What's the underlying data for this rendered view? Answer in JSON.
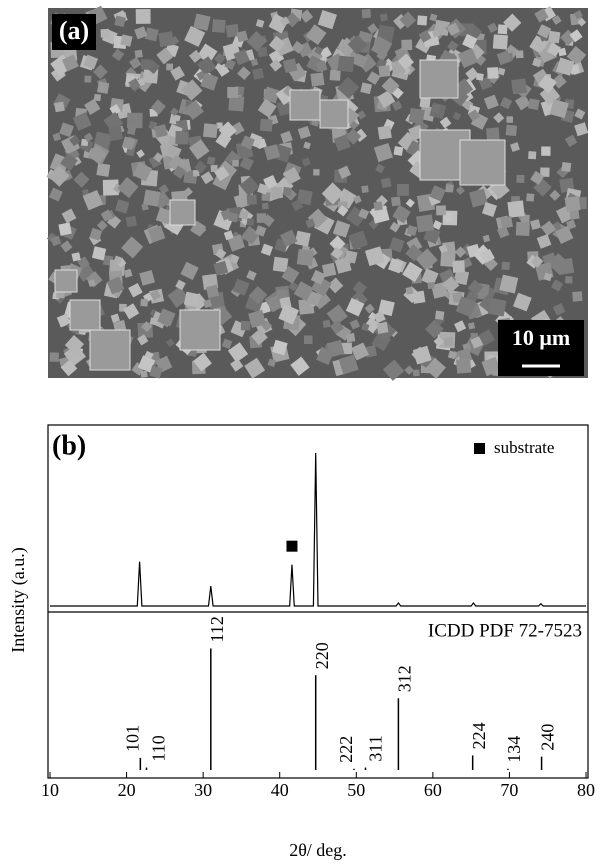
{
  "panel_a": {
    "label": "(a)",
    "scale_bar": "10 μm"
  },
  "chart_data": [
    {
      "type": "line",
      "label": "(b)",
      "legend": "substrate",
      "color": "#000000",
      "x": [
        10,
        21.4,
        21.7,
        22.0,
        30.7,
        31.0,
        31.3,
        41.3,
        41.6,
        41.9,
        44.4,
        44.7,
        45.0,
        55.2,
        55.5,
        55.8,
        65.0,
        65.3,
        65.6,
        73.8,
        74.1,
        74.4,
        80
      ],
      "values": [
        0,
        0,
        29,
        0,
        0,
        13,
        0,
        0,
        27,
        0,
        0,
        100,
        0,
        0,
        2,
        0,
        0,
        2,
        0,
        0,
        1.5,
        0,
        0
      ],
      "xlim": [
        10,
        80
      ],
      "ylim": [
        0,
        115
      ]
    },
    {
      "type": "stick",
      "title": "ICDD PDF 72-7523",
      "color": "#000000",
      "x": [
        21.8,
        22.6,
        31.0,
        44.7,
        49.7,
        51.2,
        55.5,
        65.2,
        69.8,
        74.2
      ],
      "values": [
        10,
        2,
        100,
        78,
        1,
        2,
        59,
        12,
        1,
        11
      ],
      "categories": [
        "101",
        "110",
        "112",
        "220",
        "222",
        "311",
        "312",
        "224",
        "134",
        "240"
      ],
      "xlim": [
        10,
        80
      ],
      "ylim": [
        0,
        130
      ],
      "xticks": [
        10,
        20,
        30,
        40,
        50,
        60,
        70,
        80
      ],
      "x_label": "2θ/ deg.",
      "y_label": "Intensity (a.u.)"
    }
  ]
}
